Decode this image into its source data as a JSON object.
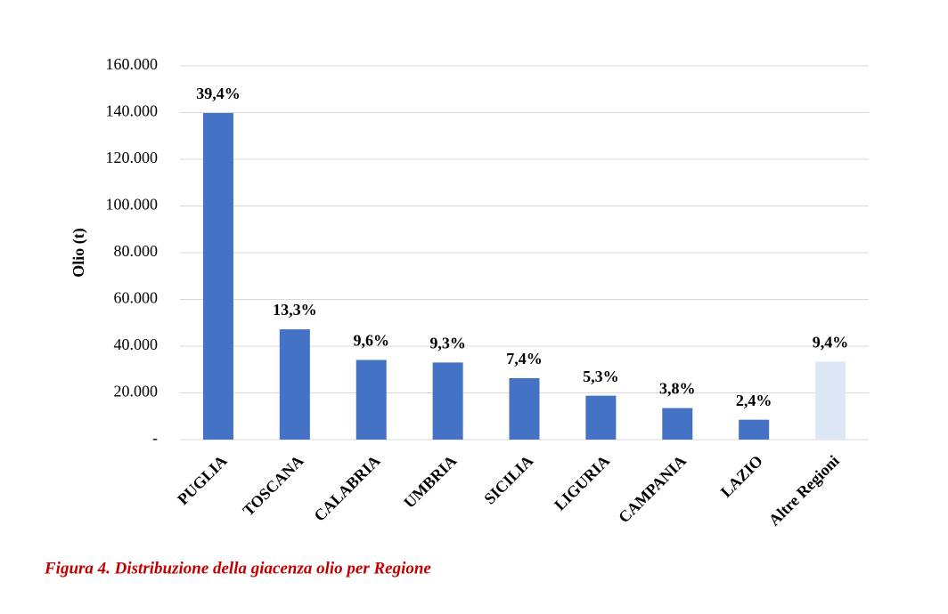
{
  "chart_data": {
    "type": "bar",
    "y_axis_label": "Olio (t)",
    "caption": "Figura 4. Distribuzione della giacenza olio per Regione",
    "categories": [
      "PUGLIA",
      "TOSCANA",
      "CALABRIA",
      "UMBRIA",
      "SICILIA",
      "LIGURIA",
      "CAMPANIA",
      "LAZIO",
      "Altre Regioni"
    ],
    "values": [
      139800,
      47200,
      34100,
      33000,
      26300,
      18800,
      13500,
      8500,
      33400
    ],
    "data_labels": [
      "39,4%",
      "13,3%",
      "9,6%",
      "9,3%",
      "7,4%",
      "5,3%",
      "3,8%",
      "2,4%",
      "9,4%"
    ],
    "colors": [
      "#4472c4",
      "#4472c4",
      "#4472c4",
      "#4472c4",
      "#4472c4",
      "#4472c4",
      "#4472c4",
      "#4472c4",
      "#dce8f6"
    ],
    "ylim": [
      0,
      160000
    ],
    "yticks": [
      {
        "value": 0,
        "label": "-"
      },
      {
        "value": 20000,
        "label": "20.000"
      },
      {
        "value": 40000,
        "label": "40.000"
      },
      {
        "value": 60000,
        "label": "60.000"
      },
      {
        "value": 80000,
        "label": "80.000"
      },
      {
        "value": 100000,
        "label": "100.000"
      },
      {
        "value": 120000,
        "label": "120.000"
      },
      {
        "value": 140000,
        "label": "140.000"
      },
      {
        "value": 160000,
        "label": "160.000"
      }
    ],
    "grid": true
  }
}
